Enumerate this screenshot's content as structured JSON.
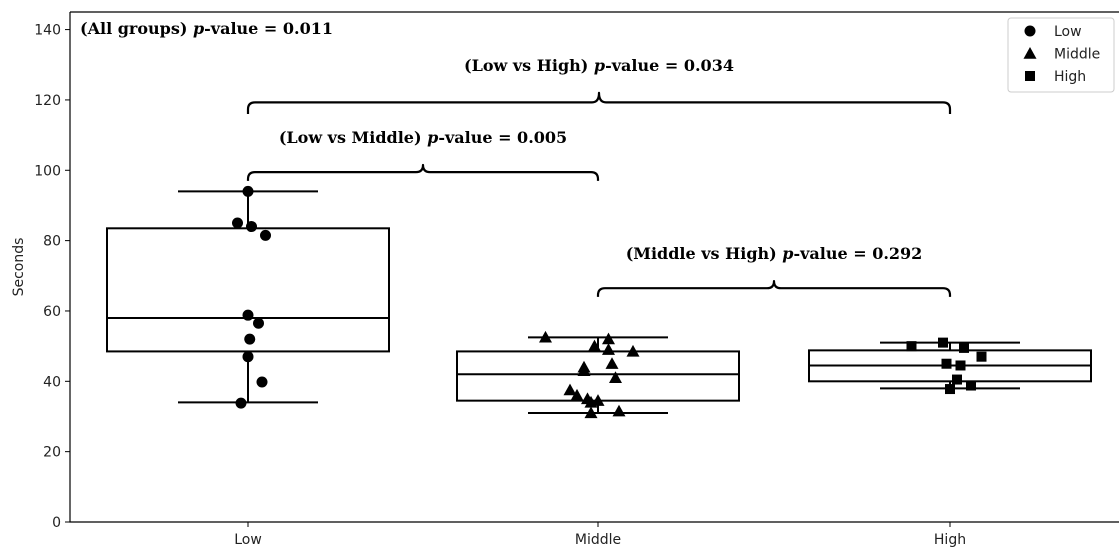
{
  "chart_data": {
    "type": "box",
    "title": "",
    "xlabel": "",
    "ylabel": "Seconds",
    "categories": [
      "Low",
      "Middle",
      "High"
    ],
    "ylim": [
      0,
      145
    ],
    "yticks": [
      0,
      20,
      40,
      60,
      80,
      100,
      120,
      140
    ],
    "grid": false,
    "legend": {
      "placement": "top-right",
      "entries": [
        {
          "name": "Low",
          "marker": "circle"
        },
        {
          "name": "Middle",
          "marker": "triangle"
        },
        {
          "name": "High",
          "marker": "square"
        }
      ]
    },
    "boxes": [
      {
        "category": "Low",
        "whisker_low": 34,
        "q1": 48.5,
        "median": 58,
        "q3": 83.5,
        "whisker_high": 94
      },
      {
        "category": "Middle",
        "whisker_low": 31,
        "q1": 34.5,
        "median": 42,
        "q3": 48.5,
        "whisker_high": 52.5
      },
      {
        "category": "High",
        "whisker_low": 38,
        "q1": 40,
        "median": 44.5,
        "q3": 48.8,
        "whisker_high": 51
      }
    ],
    "points": [
      {
        "category": "Low",
        "marker": "circle",
        "values": [
          94,
          85,
          84,
          81.5,
          58.8,
          56.5,
          52,
          47,
          39.8,
          33.8
        ],
        "jitter": [
          0.0,
          -0.03,
          0.01,
          0.05,
          0.0,
          0.03,
          0.005,
          0.0,
          0.04,
          -0.02
        ]
      },
      {
        "category": "Middle",
        "marker": "triangle",
        "values": [
          52.5,
          52,
          50,
          49,
          48.5,
          45,
          44,
          43,
          41,
          37.5,
          36,
          35,
          34.5,
          34,
          31.5,
          31
        ],
        "jitter": [
          -0.15,
          0.03,
          -0.01,
          0.03,
          0.1,
          0.04,
          -0.04,
          -0.04,
          0.05,
          -0.08,
          -0.06,
          -0.03,
          0.0,
          -0.02,
          0.06,
          -0.02
        ]
      },
      {
        "category": "High",
        "marker": "square",
        "values": [
          51,
          50,
          49.5,
          47,
          45,
          44.5,
          40.5,
          38.8,
          37.8
        ],
        "jitter": [
          -0.02,
          -0.11,
          0.04,
          0.09,
          -0.01,
          0.03,
          0.02,
          0.06,
          0.0
        ]
      }
    ],
    "annotations": {
      "all_groups": {
        "label": "(All groups) ",
        "italic": "p",
        "rest": "-value = 0.011"
      },
      "brackets": [
        {
          "from": "Low",
          "to": "High",
          "y": 116,
          "height": 6,
          "label": "(Low vs High) ",
          "italic": "p",
          "rest": "-value = 0.034"
        },
        {
          "from": "Low",
          "to": "Middle",
          "y": 97,
          "height": 4.5,
          "label": "(Low vs Middle) ",
          "italic": "p",
          "rest": "-value = 0.005"
        },
        {
          "from": "Middle",
          "to": "High",
          "y": 64,
          "height": 4.5,
          "label": "(Middle vs High) ",
          "italic": "p",
          "rest": "-value = 0.292"
        }
      ]
    }
  }
}
